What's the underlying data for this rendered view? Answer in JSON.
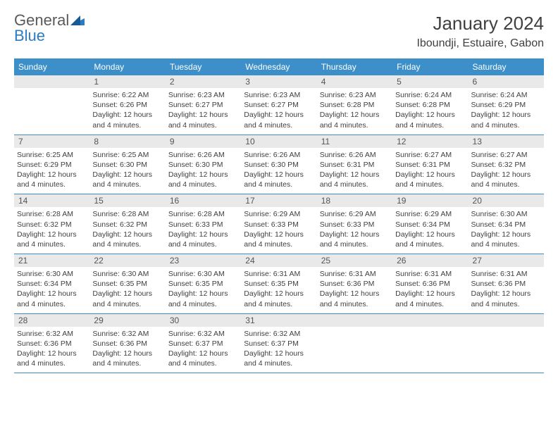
{
  "logo": {
    "text1": "General",
    "text2": "Blue"
  },
  "header": {
    "month_title": "January 2024",
    "location": "Iboundji, Estuaire, Gabon"
  },
  "colors": {
    "header_bg": "#3d8fc9",
    "header_text": "#ffffff",
    "daynum_bg": "#e9e9e9",
    "week_divider": "#3d8fc9",
    "body_text": "#404040",
    "logo_gray": "#5a5a5a",
    "logo_blue": "#2d7bc0"
  },
  "weekdays": [
    "Sunday",
    "Monday",
    "Tuesday",
    "Wednesday",
    "Thursday",
    "Friday",
    "Saturday"
  ],
  "weeks": [
    [
      {
        "day": "",
        "sunrise": "",
        "sunset": "",
        "daylight": ""
      },
      {
        "day": "1",
        "sunrise": "Sunrise: 6:22 AM",
        "sunset": "Sunset: 6:26 PM",
        "daylight": "Daylight: 12 hours and 4 minutes."
      },
      {
        "day": "2",
        "sunrise": "Sunrise: 6:23 AM",
        "sunset": "Sunset: 6:27 PM",
        "daylight": "Daylight: 12 hours and 4 minutes."
      },
      {
        "day": "3",
        "sunrise": "Sunrise: 6:23 AM",
        "sunset": "Sunset: 6:27 PM",
        "daylight": "Daylight: 12 hours and 4 minutes."
      },
      {
        "day": "4",
        "sunrise": "Sunrise: 6:23 AM",
        "sunset": "Sunset: 6:28 PM",
        "daylight": "Daylight: 12 hours and 4 minutes."
      },
      {
        "day": "5",
        "sunrise": "Sunrise: 6:24 AM",
        "sunset": "Sunset: 6:28 PM",
        "daylight": "Daylight: 12 hours and 4 minutes."
      },
      {
        "day": "6",
        "sunrise": "Sunrise: 6:24 AM",
        "sunset": "Sunset: 6:29 PM",
        "daylight": "Daylight: 12 hours and 4 minutes."
      }
    ],
    [
      {
        "day": "7",
        "sunrise": "Sunrise: 6:25 AM",
        "sunset": "Sunset: 6:29 PM",
        "daylight": "Daylight: 12 hours and 4 minutes."
      },
      {
        "day": "8",
        "sunrise": "Sunrise: 6:25 AM",
        "sunset": "Sunset: 6:30 PM",
        "daylight": "Daylight: 12 hours and 4 minutes."
      },
      {
        "day": "9",
        "sunrise": "Sunrise: 6:26 AM",
        "sunset": "Sunset: 6:30 PM",
        "daylight": "Daylight: 12 hours and 4 minutes."
      },
      {
        "day": "10",
        "sunrise": "Sunrise: 6:26 AM",
        "sunset": "Sunset: 6:30 PM",
        "daylight": "Daylight: 12 hours and 4 minutes."
      },
      {
        "day": "11",
        "sunrise": "Sunrise: 6:26 AM",
        "sunset": "Sunset: 6:31 PM",
        "daylight": "Daylight: 12 hours and 4 minutes."
      },
      {
        "day": "12",
        "sunrise": "Sunrise: 6:27 AM",
        "sunset": "Sunset: 6:31 PM",
        "daylight": "Daylight: 12 hours and 4 minutes."
      },
      {
        "day": "13",
        "sunrise": "Sunrise: 6:27 AM",
        "sunset": "Sunset: 6:32 PM",
        "daylight": "Daylight: 12 hours and 4 minutes."
      }
    ],
    [
      {
        "day": "14",
        "sunrise": "Sunrise: 6:28 AM",
        "sunset": "Sunset: 6:32 PM",
        "daylight": "Daylight: 12 hours and 4 minutes."
      },
      {
        "day": "15",
        "sunrise": "Sunrise: 6:28 AM",
        "sunset": "Sunset: 6:32 PM",
        "daylight": "Daylight: 12 hours and 4 minutes."
      },
      {
        "day": "16",
        "sunrise": "Sunrise: 6:28 AM",
        "sunset": "Sunset: 6:33 PM",
        "daylight": "Daylight: 12 hours and 4 minutes."
      },
      {
        "day": "17",
        "sunrise": "Sunrise: 6:29 AM",
        "sunset": "Sunset: 6:33 PM",
        "daylight": "Daylight: 12 hours and 4 minutes."
      },
      {
        "day": "18",
        "sunrise": "Sunrise: 6:29 AM",
        "sunset": "Sunset: 6:33 PM",
        "daylight": "Daylight: 12 hours and 4 minutes."
      },
      {
        "day": "19",
        "sunrise": "Sunrise: 6:29 AM",
        "sunset": "Sunset: 6:34 PM",
        "daylight": "Daylight: 12 hours and 4 minutes."
      },
      {
        "day": "20",
        "sunrise": "Sunrise: 6:30 AM",
        "sunset": "Sunset: 6:34 PM",
        "daylight": "Daylight: 12 hours and 4 minutes."
      }
    ],
    [
      {
        "day": "21",
        "sunrise": "Sunrise: 6:30 AM",
        "sunset": "Sunset: 6:34 PM",
        "daylight": "Daylight: 12 hours and 4 minutes."
      },
      {
        "day": "22",
        "sunrise": "Sunrise: 6:30 AM",
        "sunset": "Sunset: 6:35 PM",
        "daylight": "Daylight: 12 hours and 4 minutes."
      },
      {
        "day": "23",
        "sunrise": "Sunrise: 6:30 AM",
        "sunset": "Sunset: 6:35 PM",
        "daylight": "Daylight: 12 hours and 4 minutes."
      },
      {
        "day": "24",
        "sunrise": "Sunrise: 6:31 AM",
        "sunset": "Sunset: 6:35 PM",
        "daylight": "Daylight: 12 hours and 4 minutes."
      },
      {
        "day": "25",
        "sunrise": "Sunrise: 6:31 AM",
        "sunset": "Sunset: 6:36 PM",
        "daylight": "Daylight: 12 hours and 4 minutes."
      },
      {
        "day": "26",
        "sunrise": "Sunrise: 6:31 AM",
        "sunset": "Sunset: 6:36 PM",
        "daylight": "Daylight: 12 hours and 4 minutes."
      },
      {
        "day": "27",
        "sunrise": "Sunrise: 6:31 AM",
        "sunset": "Sunset: 6:36 PM",
        "daylight": "Daylight: 12 hours and 4 minutes."
      }
    ],
    [
      {
        "day": "28",
        "sunrise": "Sunrise: 6:32 AM",
        "sunset": "Sunset: 6:36 PM",
        "daylight": "Daylight: 12 hours and 4 minutes."
      },
      {
        "day": "29",
        "sunrise": "Sunrise: 6:32 AM",
        "sunset": "Sunset: 6:36 PM",
        "daylight": "Daylight: 12 hours and 4 minutes."
      },
      {
        "day": "30",
        "sunrise": "Sunrise: 6:32 AM",
        "sunset": "Sunset: 6:37 PM",
        "daylight": "Daylight: 12 hours and 4 minutes."
      },
      {
        "day": "31",
        "sunrise": "Sunrise: 6:32 AM",
        "sunset": "Sunset: 6:37 PM",
        "daylight": "Daylight: 12 hours and 4 minutes."
      },
      {
        "day": "",
        "sunrise": "",
        "sunset": "",
        "daylight": ""
      },
      {
        "day": "",
        "sunrise": "",
        "sunset": "",
        "daylight": ""
      },
      {
        "day": "",
        "sunrise": "",
        "sunset": "",
        "daylight": ""
      }
    ]
  ]
}
